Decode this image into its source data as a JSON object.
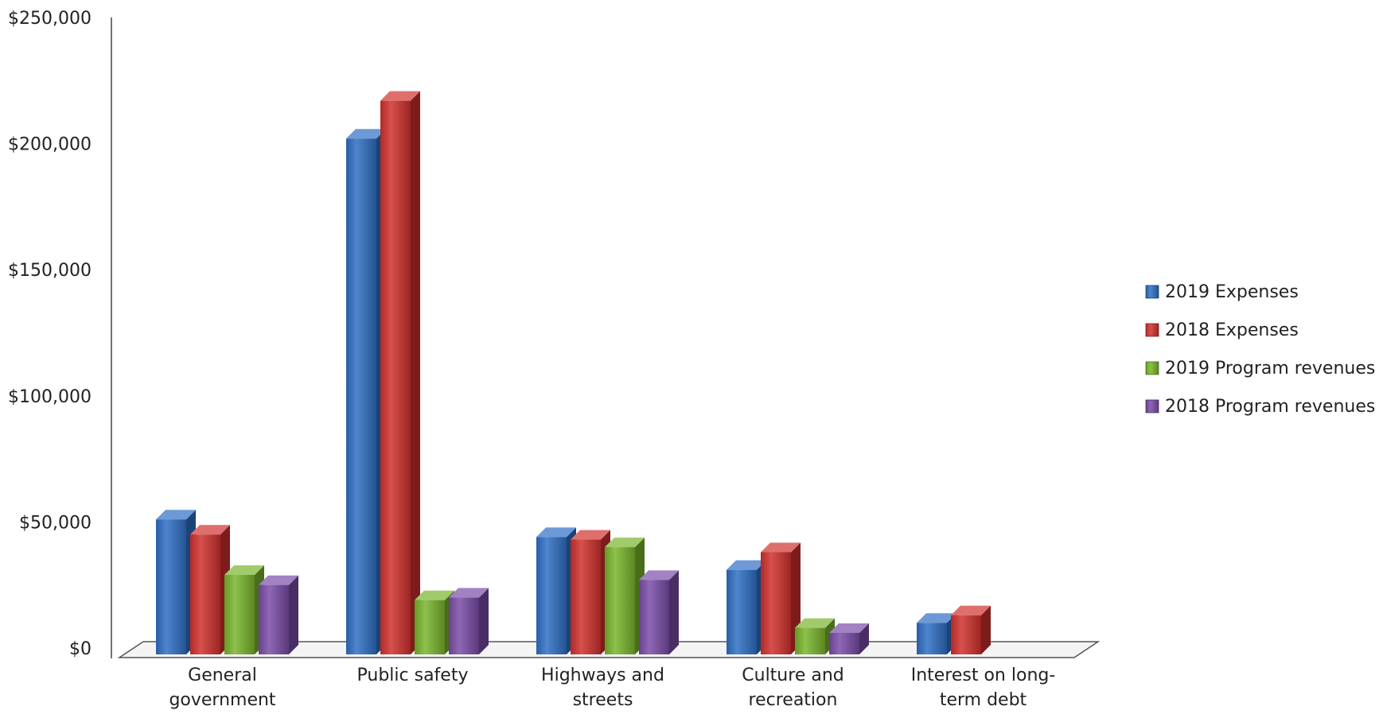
{
  "chart_data": {
    "type": "bar",
    "title": "",
    "xlabel": "",
    "ylabel": "",
    "ylim": [
      0,
      250000
    ],
    "yticks": [
      "$0",
      "$50,000",
      "$100,000",
      "$150,000",
      "$200,000",
      "$250,000"
    ],
    "categories": [
      [
        "General",
        "government"
      ],
      [
        "Public safety"
      ],
      [
        "Highways and",
        "streets"
      ],
      [
        "Culture and",
        "recreation"
      ],
      [
        "Interest on long-",
        "term debt"
      ]
    ],
    "series": [
      {
        "name": "2019 Expenses",
        "color": "#2f6fc4",
        "values": [
          51000,
          202000,
          44000,
          31000,
          10000
        ]
      },
      {
        "name": "2018 Expenses",
        "color": "#d0312d",
        "values": [
          45000,
          217000,
          43000,
          38000,
          13000
        ]
      },
      {
        "name": "2019 Program revenues",
        "color": "#79b52c",
        "values": [
          29000,
          19000,
          40000,
          8000,
          null
        ]
      },
      {
        "name": "2018 Program revenues",
        "color": "#7a4ca8",
        "values": [
          25000,
          20000,
          27000,
          6000,
          null
        ]
      }
    ],
    "legend_position": "right",
    "grid": false,
    "style": "3d-column"
  }
}
